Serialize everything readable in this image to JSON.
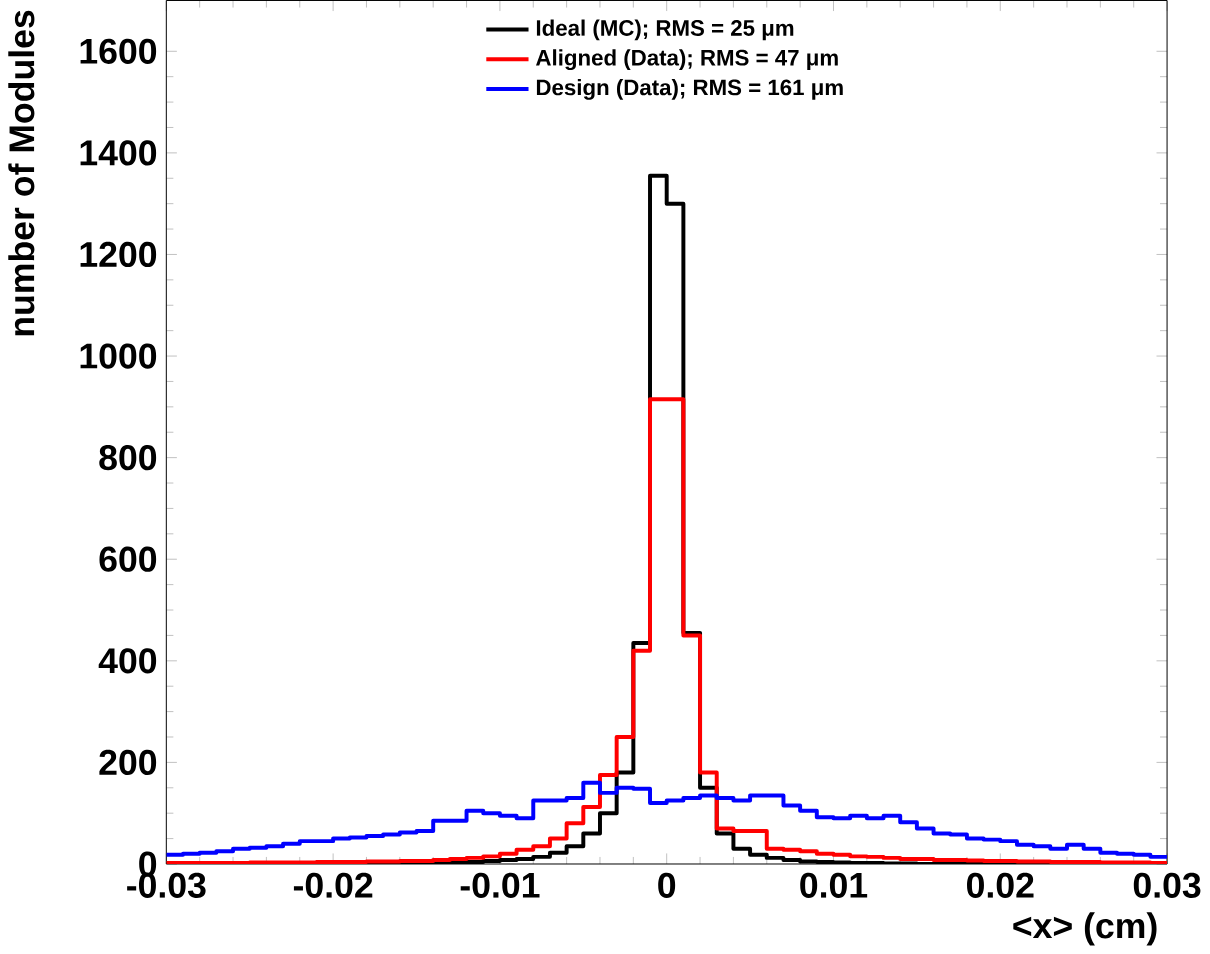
{
  "chart_data": {
    "type": "histogram",
    "xlabel": "<x> (cm)",
    "ylabel": "number of Modules",
    "bins": [
      -0.03,
      -0.029,
      -0.028,
      -0.027,
      -0.026,
      -0.025,
      -0.024,
      -0.023,
      -0.022,
      -0.021,
      -0.02,
      -0.019,
      -0.018,
      -0.017,
      -0.016,
      -0.015,
      -0.014,
      -0.013,
      -0.012,
      -0.011,
      -0.01,
      -0.009,
      -0.008,
      -0.007,
      -0.006,
      -0.005,
      -0.004,
      -0.003,
      -0.002,
      -0.001,
      0,
      0.001,
      0.002,
      0.003,
      0.004,
      0.005,
      0.006,
      0.007,
      0.008,
      0.009,
      0.01,
      0.011,
      0.012,
      0.013,
      0.014,
      0.015,
      0.016,
      0.017,
      0.018,
      0.019,
      0.02,
      0.021,
      0.022,
      0.023,
      0.024,
      0.025,
      0.026,
      0.027,
      0.028,
      0.029,
      0.03
    ],
    "series": [
      {
        "name": "Ideal (MC); RMS = 25 μm",
        "color": "#000000",
        "values": [
          0,
          0,
          0,
          0,
          0,
          0,
          0,
          0,
          0,
          0,
          0,
          0,
          0,
          1,
          1,
          2,
          2,
          3,
          4,
          6,
          8,
          10,
          14,
          22,
          35,
          60,
          100,
          180,
          435,
          1355,
          1300,
          455,
          150,
          60,
          30,
          18,
          12,
          8,
          5,
          4,
          3,
          2,
          2,
          1,
          1,
          0,
          0,
          0,
          0,
          0,
          0,
          0,
          0,
          0,
          0,
          0,
          0,
          0,
          0,
          0
        ]
      },
      {
        "name": "Aligned (Data); RMS = 47 μm",
        "color": "#ff0000",
        "values": [
          2,
          2,
          2,
          2,
          2,
          3,
          3,
          3,
          3,
          4,
          4,
          4,
          5,
          5,
          6,
          6,
          8,
          10,
          12,
          15,
          20,
          28,
          35,
          50,
          80,
          112,
          175,
          250,
          420,
          915,
          915,
          450,
          180,
          70,
          65,
          65,
          30,
          28,
          25,
          20,
          18,
          15,
          14,
          12,
          10,
          10,
          8,
          8,
          7,
          6,
          6,
          5,
          5,
          4,
          4,
          4,
          3,
          3,
          3,
          2
        ]
      },
      {
        "name": "Design (Data); RMS = 161 μm",
        "color": "#0000ff",
        "values": [
          18,
          20,
          22,
          25,
          30,
          32,
          35,
          40,
          45,
          45,
          50,
          52,
          55,
          58,
          62,
          65,
          85,
          85,
          105,
          100,
          95,
          90,
          125,
          125,
          130,
          160,
          140,
          150,
          148,
          120,
          125,
          130,
          135,
          130,
          125,
          135,
          135,
          115,
          105,
          92,
          90,
          95,
          90,
          95,
          82,
          70,
          60,
          58,
          50,
          48,
          45,
          38,
          35,
          30,
          38,
          30,
          22,
          20,
          18,
          14
        ]
      }
    ],
    "xlim": [
      -0.03,
      0.03
    ],
    "ylim": [
      0,
      1700
    ],
    "xticks": [
      -0.03,
      -0.02,
      -0.01,
      0,
      0.01,
      0.02,
      0.03
    ],
    "yticks": [
      0,
      200,
      400,
      600,
      800,
      1000,
      1200,
      1400,
      1600
    ],
    "legend": "top",
    "grid": false
  }
}
